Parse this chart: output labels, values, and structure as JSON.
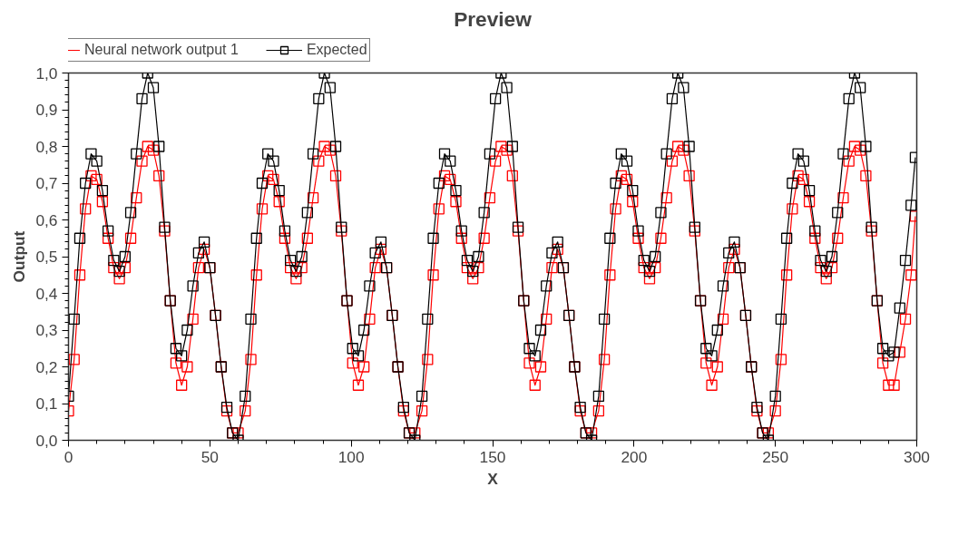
{
  "chart_data": {
    "type": "line",
    "title": "Preview",
    "xlabel": "X",
    "ylabel": "Output",
    "x": [
      0,
      2,
      4,
      6,
      8,
      10,
      12,
      14,
      16,
      18,
      20,
      22,
      24,
      26,
      28,
      30,
      32,
      34,
      36,
      38,
      40,
      42,
      44,
      46,
      48,
      50,
      52,
      54,
      56,
      58,
      60,
      62.5,
      64.5,
      66.5,
      68.5,
      70.5,
      72.5,
      74.5,
      76.5,
      78.5,
      80.5,
      82.5,
      84.5,
      86.5,
      88.5,
      90.5,
      92.5,
      94.5,
      96.5,
      98.5,
      100.5,
      102.5,
      104.5,
      106.5,
      108.5,
      110.5,
      112.5,
      114.5,
      116.5,
      118.5,
      120.5,
      122.5,
      125,
      127,
      129,
      131,
      133,
      135,
      137,
      139,
      141,
      143,
      145,
      147,
      149,
      151,
      153,
      155,
      157,
      159,
      161,
      163,
      165,
      167,
      169,
      171,
      173,
      175,
      177,
      179,
      181,
      183,
      185,
      187.5,
      189.5,
      191.5,
      193.5,
      195.5,
      197.5,
      199.5,
      201.5,
      203.5,
      205.5,
      207.5,
      209.5,
      211.5,
      213.5,
      215.5,
      217.5,
      219.5,
      221.5,
      223.5,
      225.5,
      227.5,
      229.5,
      231.5,
      233.5,
      235.5,
      237.5,
      239.5,
      241.5,
      243.5,
      245.5,
      247.5,
      250,
      252,
      254,
      256,
      258,
      260,
      262,
      264,
      266,
      268,
      270,
      272,
      274,
      276,
      278,
      280,
      282,
      284,
      286,
      288,
      290,
      292,
      294,
      296,
      298,
      299.5
    ],
    "series": [
      {
        "name": "Neural network output 1",
        "color": "#ff0000",
        "values": [
          0.08,
          0.22,
          0.45,
          0.63,
          0.72,
          0.71,
          0.65,
          0.55,
          0.47,
          0.44,
          0.47,
          0.55,
          0.66,
          0.76,
          0.8,
          0.79,
          0.72,
          0.57,
          0.38,
          0.21,
          0.15,
          0.2,
          0.33,
          0.47,
          0.52,
          0.47,
          0.34,
          0.2,
          0.08,
          0.02,
          0.02,
          0.08,
          0.22,
          0.45,
          0.63,
          0.72,
          0.71,
          0.65,
          0.55,
          0.47,
          0.44,
          0.47,
          0.55,
          0.66,
          0.76,
          0.8,
          0.79,
          0.72,
          0.57,
          0.38,
          0.21,
          0.15,
          0.2,
          0.33,
          0.47,
          0.52,
          0.47,
          0.34,
          0.2,
          0.08,
          0.02,
          0.02,
          0.08,
          0.22,
          0.45,
          0.63,
          0.72,
          0.71,
          0.65,
          0.55,
          0.47,
          0.44,
          0.47,
          0.55,
          0.66,
          0.76,
          0.8,
          0.79,
          0.72,
          0.57,
          0.38,
          0.21,
          0.15,
          0.2,
          0.33,
          0.47,
          0.52,
          0.47,
          0.34,
          0.2,
          0.08,
          0.02,
          0.02,
          0.08,
          0.22,
          0.45,
          0.63,
          0.72,
          0.71,
          0.65,
          0.55,
          0.47,
          0.44,
          0.47,
          0.55,
          0.66,
          0.76,
          0.8,
          0.79,
          0.72,
          0.57,
          0.38,
          0.21,
          0.15,
          0.2,
          0.33,
          0.47,
          0.52,
          0.47,
          0.34,
          0.2,
          0.08,
          0.02,
          0.02,
          0.08,
          0.22,
          0.45,
          0.63,
          0.72,
          0.71,
          0.65,
          0.55,
          0.47,
          0.44,
          0.47,
          0.55,
          0.66,
          0.76,
          0.8,
          0.79,
          0.72,
          0.57,
          0.38,
          0.21,
          0.15,
          0.15,
          0.24,
          0.33,
          0.45,
          0.61
        ]
      },
      {
        "name": "Expected",
        "color": "#000000",
        "values": [
          0.12,
          0.33,
          0.55,
          0.7,
          0.78,
          0.76,
          0.68,
          0.57,
          0.49,
          0.46,
          0.5,
          0.62,
          0.78,
          0.93,
          1.0,
          0.96,
          0.8,
          0.58,
          0.38,
          0.25,
          0.23,
          0.3,
          0.42,
          0.51,
          0.54,
          0.47,
          0.34,
          0.2,
          0.09,
          0.02,
          0.0,
          0.12,
          0.33,
          0.55,
          0.7,
          0.78,
          0.76,
          0.68,
          0.57,
          0.49,
          0.46,
          0.5,
          0.62,
          0.78,
          0.93,
          1.0,
          0.96,
          0.8,
          0.58,
          0.38,
          0.25,
          0.23,
          0.3,
          0.42,
          0.51,
          0.54,
          0.47,
          0.34,
          0.2,
          0.09,
          0.02,
          0.0,
          0.12,
          0.33,
          0.55,
          0.7,
          0.78,
          0.76,
          0.68,
          0.57,
          0.49,
          0.46,
          0.5,
          0.62,
          0.78,
          0.93,
          1.0,
          0.96,
          0.8,
          0.58,
          0.38,
          0.25,
          0.23,
          0.3,
          0.42,
          0.51,
          0.54,
          0.47,
          0.34,
          0.2,
          0.09,
          0.02,
          0.0,
          0.12,
          0.33,
          0.55,
          0.7,
          0.78,
          0.76,
          0.68,
          0.57,
          0.49,
          0.46,
          0.5,
          0.62,
          0.78,
          0.93,
          1.0,
          0.96,
          0.8,
          0.58,
          0.38,
          0.25,
          0.23,
          0.3,
          0.42,
          0.51,
          0.54,
          0.47,
          0.34,
          0.2,
          0.09,
          0.02,
          0.0,
          0.12,
          0.33,
          0.55,
          0.7,
          0.78,
          0.76,
          0.68,
          0.57,
          0.49,
          0.46,
          0.5,
          0.62,
          0.78,
          0.93,
          1.0,
          0.96,
          0.8,
          0.58,
          0.38,
          0.25,
          0.23,
          0.24,
          0.36,
          0.49,
          0.64,
          0.77
        ]
      }
    ],
    "xlim": [
      0,
      300
    ],
    "ylim": [
      0,
      1.0
    ],
    "xticks": [
      0,
      50,
      100,
      150,
      200,
      250,
      300
    ],
    "yticks": [
      {
        "value": 0,
        "label": "0,0"
      },
      {
        "value": 0.1,
        "label": "0,1"
      },
      {
        "value": 0.2,
        "label": "0,2"
      },
      {
        "value": 0.3,
        "label": "0,3"
      },
      {
        "value": 0.4,
        "label": "0,4"
      },
      {
        "value": 0.5,
        "label": "0,5"
      },
      {
        "value": 0.6,
        "label": "0,6"
      },
      {
        "value": 0.7,
        "label": "0,7"
      },
      {
        "value": 0.8,
        "label": "0,8"
      },
      {
        "value": 0.9,
        "label": "0,9"
      },
      {
        "value": 1.0,
        "label": "1,0"
      }
    ],
    "grid": false,
    "legend": "top",
    "marker": "square",
    "line_style": "solid"
  }
}
